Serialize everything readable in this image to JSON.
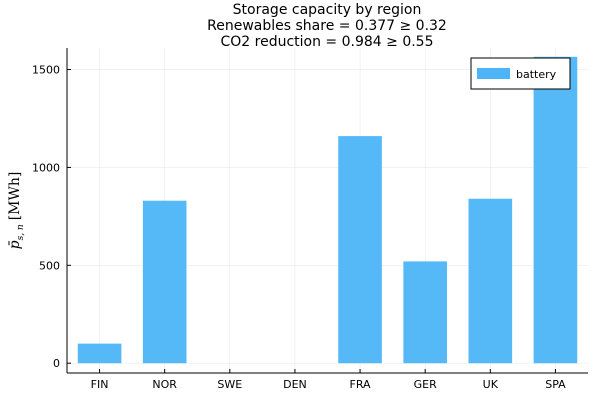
{
  "chart_data": {
    "type": "bar",
    "title_lines": [
      "Storage capacity by region",
      "Renewables share = 0.377 ≥ 0.32",
      "CO2 reduction = 0.984 ≥ 0.55"
    ],
    "xlabel": "",
    "ylabel": {
      "symbol": "p̄",
      "subscript": "s, n",
      "unit": "[MWh]"
    },
    "categories": [
      "FIN",
      "NOR",
      "SWE",
      "DEN",
      "FRA",
      "GER",
      "UK",
      "SPA"
    ],
    "series": [
      {
        "name": "battery",
        "values": [
          100,
          830,
          0,
          0,
          1160,
          520,
          840,
          1565
        ],
        "color": "#4db5f7"
      }
    ],
    "ylim": [
      -50,
      1610
    ],
    "yticks": [
      0,
      500,
      1000,
      1500
    ],
    "ytick_labels": [
      "0",
      "500",
      "1000",
      "1500"
    ],
    "grid": true,
    "legend": {
      "position": "top-right",
      "entries": [
        "battery"
      ]
    }
  }
}
